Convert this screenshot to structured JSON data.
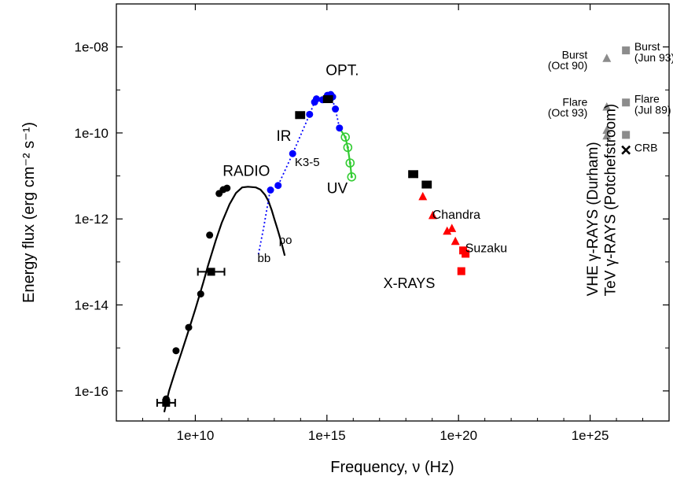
{
  "chart_data": {
    "type": "scatter",
    "xlabel": "Frequency, ν (Hz)",
    "ylabel": "Energy flux (erg cm⁻² s⁻¹)",
    "xscale": "log",
    "yscale": "log",
    "xlim": [
      10000000.0,
      1e+28
    ],
    "ylim": [
      2e-17,
      1e-07
    ],
    "x_ticks": [
      {
        "value": 10000000000.0,
        "label": "1e+10"
      },
      {
        "value": 1000000000000000.0,
        "label": "1e+15"
      },
      {
        "value": 1e+20,
        "label": "1e+20"
      },
      {
        "value": 1e+25,
        "label": "1e+25"
      }
    ],
    "y_ticks": [
      {
        "value": 1e-16,
        "label": "1e-16"
      },
      {
        "value": 1e-14,
        "label": "1e-14"
      },
      {
        "value": 1e-12,
        "label": "1e-12"
      },
      {
        "value": 1e-10,
        "label": "1e-10"
      },
      {
        "value": 1e-08,
        "label": "1e-08"
      }
    ],
    "grid": false,
    "series": [
      {
        "name": "RADIO",
        "marker": "circle",
        "color": "#000000",
        "x": [
          780000000.0,
          830000000.0,
          1850000000.0,
          5600000000.0,
          16000000000.0,
          35000000000.0,
          80000000000.0,
          115000000000.0,
          160000000000.0
        ],
        "y": [
          6.5e-17,
          5.4e-17,
          8.6e-16,
          3e-15,
          1.8e-14,
          4.2e-13,
          3.9e-12,
          4.8e-12,
          5.2e-12
        ]
      },
      {
        "name": "RADIO",
        "marker": "square-errorbar",
        "color": "#000000",
        "x": [
          780000000.0,
          40000000000.0
        ],
        "y": [
          5.3e-17,
          5.9e-14
        ],
        "xerr_factor": [
          2.2,
          3.2
        ]
      },
      {
        "name": "IR",
        "marker": "circle",
        "color": "#0000ff",
        "x": [
          7200000000000.0,
          14000000000000.0,
          50000000000000.0,
          220000000000000.0,
          340000000000000.0,
          400000000000000.0,
          680000000000000.0,
          1050000000000000.0,
          1400000000000000.0,
          1650000000000000.0,
          2100000000000000.0,
          3000000000000000.0
        ],
        "y": [
          4.7e-12,
          6e-12,
          3.3e-11,
          2.7e-10,
          5.2e-10,
          6.2e-10,
          5.9e-10,
          7.5e-10,
          7.8e-10,
          6.9e-10,
          3.6e-10,
          1.3e-10
        ]
      },
      {
        "name": "OPT.",
        "marker": "square-errorbar",
        "color": "#000000",
        "x": [
          96000000000000.0,
          1100000000000000.0
        ],
        "y": [
          2.6e-10,
          6.1e-10
        ]
      },
      {
        "name": "UV",
        "marker": "open-circle",
        "color": "#33cc33",
        "x": [
          5000000000000000.0,
          6200000000000000.0,
          7600000000000000.0,
          8700000000000000.0
        ],
        "y": [
          8e-11,
          4.6e-11,
          2e-11,
          9.5e-12
        ]
      },
      {
        "name": "X-RAYS",
        "marker": "square-errorbar",
        "color": "#000000",
        "x": [
          1.9e+18,
          6.2e+18
        ],
        "y": [
          1.1e-11,
          6.3e-12
        ]
      },
      {
        "name": "Chandra",
        "marker": "triangle",
        "color": "#ff0000",
        "x": [
          4.4e+18,
          1.05e+19,
          3.7e+19,
          5.6e+19,
          7.6e+19
        ],
        "y": [
          3.3e-12,
          1.2e-12,
          5.2e-13,
          6e-13,
          3e-13
        ]
      },
      {
        "name": "Suzaku",
        "marker": "square",
        "color": "#ff0000",
        "x": [
          1.5e+20,
          1.85e+20,
          1.28e+20
        ],
        "y": [
          1.85e-13,
          1.55e-13,
          6.1e-14
        ]
      },
      {
        "name": "VHE γ-RAYS (Durham)",
        "marker": "triangle",
        "color": "#8c8c8c",
        "x": [
          4.3e+25,
          4.3e+25,
          4.3e+25,
          4.3e+25
        ],
        "y": [
          5.4e-09,
          4e-10,
          1.15e-10,
          8.5e-11
        ]
      },
      {
        "name": "TeV γ-RAYS (Potchefstroom)",
        "marker": "square",
        "color": "#8c8c8c",
        "x": [
          2.3e+26,
          2.3e+26,
          2.3e+26
        ],
        "y": [
          8.3e-09,
          5.1e-10,
          9e-11
        ]
      },
      {
        "name": "CRB",
        "marker": "cross",
        "color": "#000000",
        "x": [
          2.3e+26
        ],
        "y": [
          4e-11
        ]
      }
    ],
    "curves": [
      {
        "name": "po",
        "style": "solid",
        "color": "#000000",
        "x": [
          660000000.0,
          1000000000.0,
          1700000000.0,
          3000000000.0,
          5000000000.0,
          10000000000.0,
          20000000000.0,
          30000000000.0,
          60000000000.0,
          100000000000.0,
          200000000000.0,
          350000000000.0,
          600000000000.0,
          1000000000000.0,
          2000000000000.0,
          3000000000000.0,
          4500000000000.0,
          6000000000000.0,
          8000000000000.0,
          10000000000000.0,
          13000000000000.0,
          16000000000000.0,
          20000000000000.0,
          25000000000000.0
        ],
        "y": [
          3.2e-17,
          1e-16,
          2.8e-16,
          7.9e-16,
          2.1e-15,
          7.9e-15,
          3.3e-14,
          8e-14,
          3.2e-13,
          8e-13,
          2.2e-12,
          4e-12,
          5.4e-12,
          5.6e-12,
          5.4e-12,
          4.8e-12,
          3.6e-12,
          2.6e-12,
          1.6e-12,
          1e-12,
          6e-13,
          3.9e-13,
          2.4e-13,
          1.4e-13
        ]
      },
      {
        "name": "bb",
        "style": "dotted",
        "color": "#0000ff",
        "x": [
          2500000000000.0,
          4000000000000.0,
          7000000000000.0,
          14000000000000.0,
          50000000000000.0,
          220000000000000.0,
          340000000000000.0,
          680000000000000.0,
          1050000000000000.0,
          1400000000000000.0,
          2100000000000000.0,
          3000000000000000.0
        ],
        "y": [
          1.5e-13,
          6.5e-13,
          4.7e-12,
          6e-12,
          3.3e-11,
          2.7e-10,
          5.2e-10,
          5.9e-10,
          7.5e-10,
          7.8e-10,
          3.6e-10,
          1.3e-10
        ]
      },
      {
        "name": "UV",
        "style": "solid",
        "color": "#33cc33",
        "x": [
          3000000000000000.0,
          5000000000000000.0,
          6200000000000000.0,
          7600000000000000.0,
          8700000000000000.0
        ],
        "y": [
          1.3e-10,
          8e-11,
          4.6e-11,
          2e-11,
          9.5e-12
        ]
      }
    ],
    "annotations": [
      {
        "text": "OPT.",
        "x": 900000000000000.0,
        "y": 2.2e-09,
        "size": 19
      },
      {
        "text": "IR",
        "x": 12000000000000.0,
        "y": 6.5e-11,
        "size": 19
      },
      {
        "text": "K3-5",
        "x": 60000000000000.0,
        "y": 1.7e-11,
        "size": 15
      },
      {
        "text": "RADIO",
        "x": 110000000000.0,
        "y": 1e-11,
        "size": 19
      },
      {
        "text": "UV",
        "x": 1000000000000000.0,
        "y": 4e-12,
        "size": 19
      },
      {
        "text": "po",
        "x": 15000000000000.0,
        "y": 2.6e-13,
        "size": 15
      },
      {
        "text": "bb",
        "x": 2300000000000.0,
        "y": 1e-13,
        "size": 15
      },
      {
        "text": "Chandra",
        "x": 1e+19,
        "y": 1e-12,
        "size": 16
      },
      {
        "text": "Suzaku",
        "x": 1.8e+20,
        "y": 1.7e-13,
        "size": 16
      },
      {
        "text": "X-RAYS",
        "x": 1.4e+17,
        "y": 2.5e-14,
        "size": 18
      },
      {
        "text": "Burst",
        "x": 8e+24,
        "y": 5.4e-09,
        "size": 14,
        "anchor": "end"
      },
      {
        "text": "(Oct 90)",
        "x": 8e+24,
        "y": 3e-09,
        "size": 14,
        "anchor": "end"
      },
      {
        "text": "Flare",
        "x": 8e+24,
        "y": 4.3e-10,
        "size": 14,
        "anchor": "end"
      },
      {
        "text": "(Oct 93)",
        "x": 8e+24,
        "y": 2.4e-10,
        "size": 14,
        "anchor": "end"
      },
      {
        "text": "Burst",
        "x": 4.8e+26,
        "y": 8.3e-09,
        "size": 14
      },
      {
        "text": "(Jun 93)",
        "x": 4.8e+26,
        "y": 4.6e-09,
        "size": 14
      },
      {
        "text": "Flare",
        "x": 4.8e+26,
        "y": 5.1e-10,
        "size": 14
      },
      {
        "text": "(Jul 89)",
        "x": 4.8e+26,
        "y": 2.8e-10,
        "size": 14
      },
      {
        "text": "CRB",
        "x": 4.8e+26,
        "y": 3.7e-11,
        "size": 14
      }
    ],
    "vertical_labels": [
      {
        "text": "VHE γ-RAYS (Durham)",
        "x": 1.9e+25,
        "y": 1.6e-14,
        "size": 19
      },
      {
        "text": "TeV γ-RAYS (Potchefstroom)",
        "x": 9e+25,
        "y": 1.6e-14,
        "size": 19
      }
    ]
  }
}
